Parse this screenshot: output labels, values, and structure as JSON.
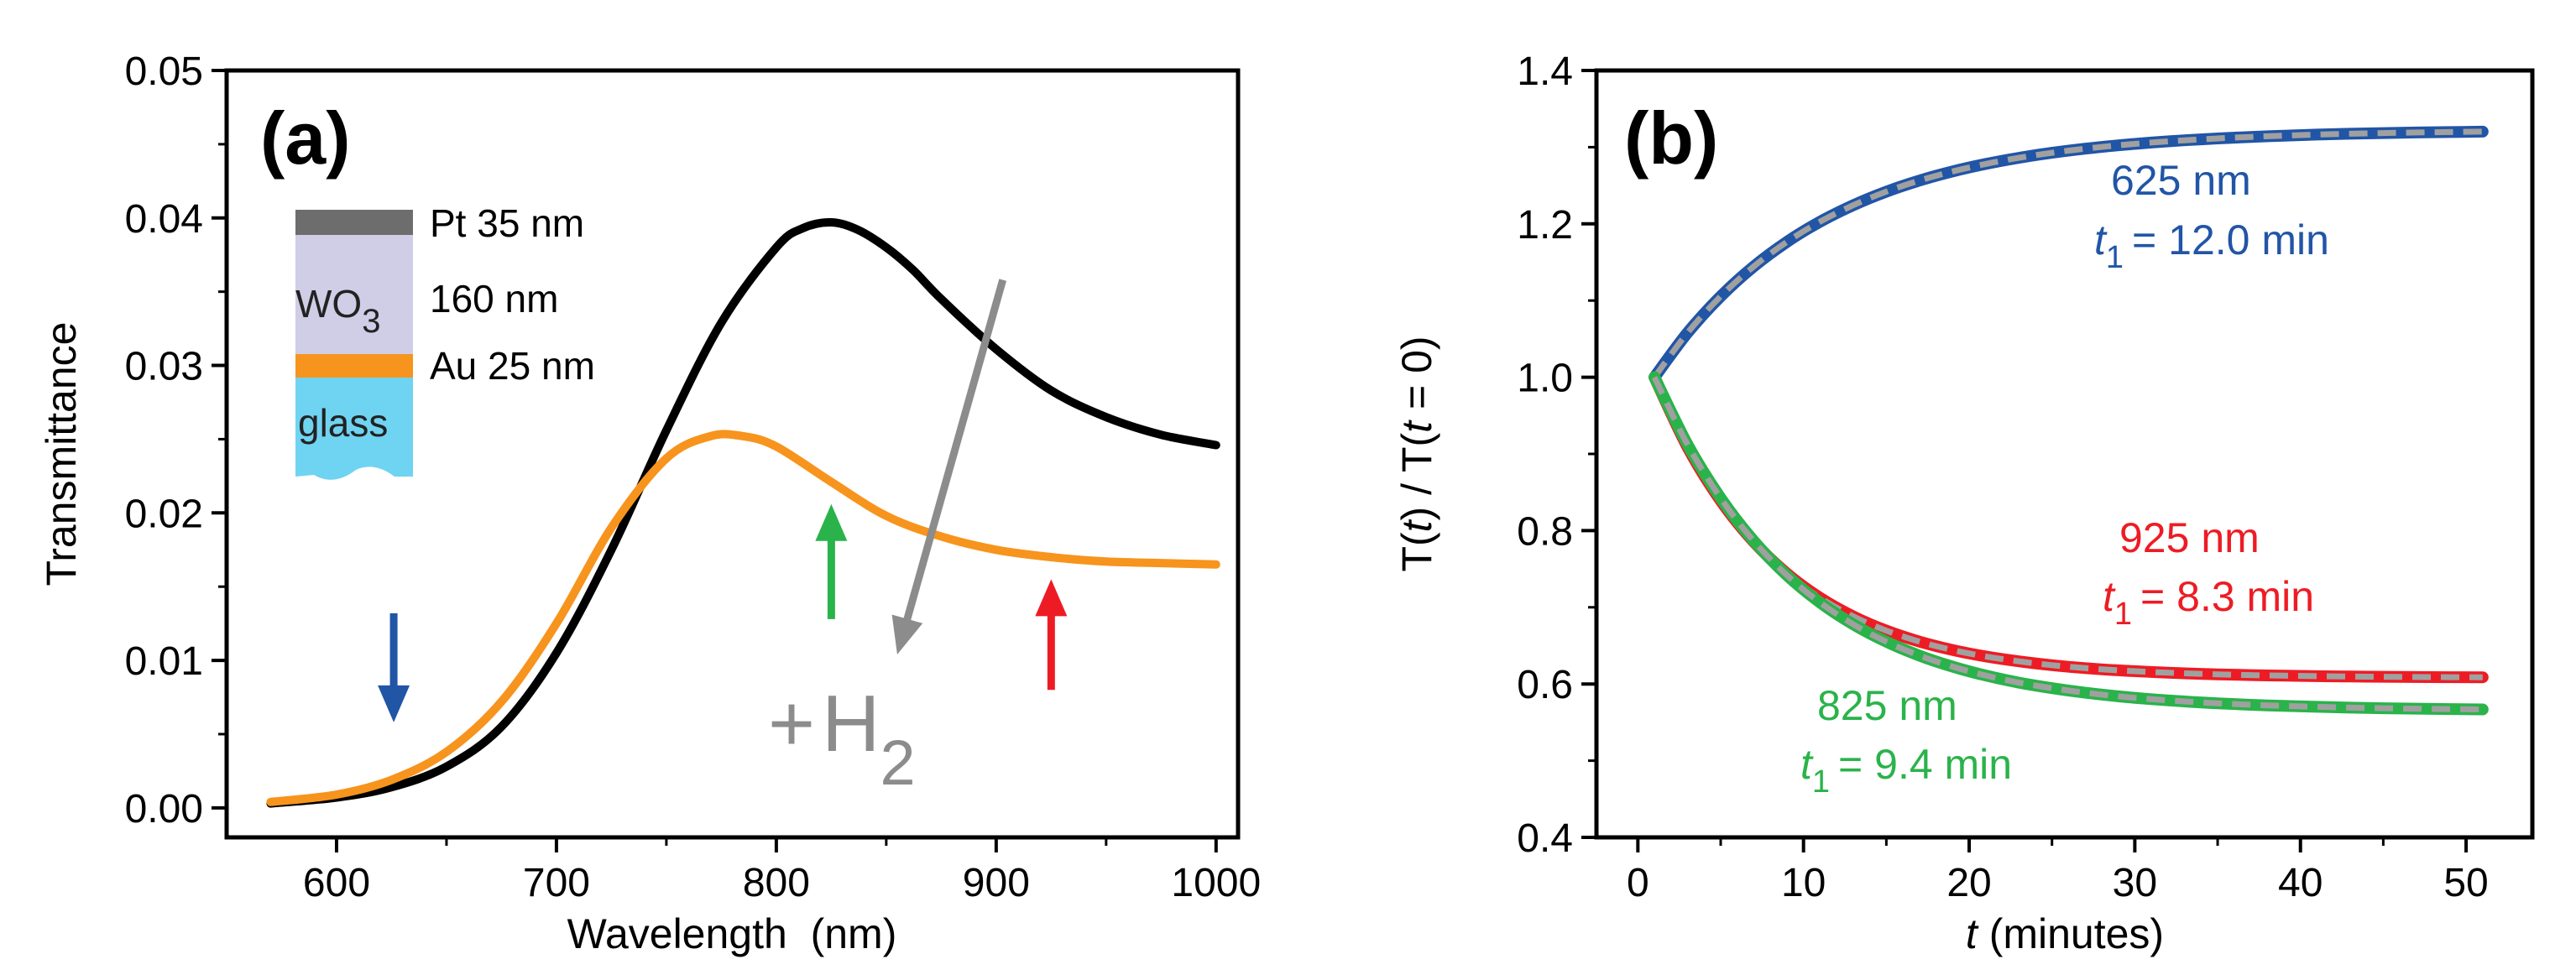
{
  "chart_data": [
    {
      "type": "line",
      "panel_label": "(a)",
      "xlabel": "Wavelength  (nm)",
      "ylabel": "Transmittance",
      "xlim": [
        550,
        1010
      ],
      "ylim": [
        -0.002,
        0.05
      ],
      "xticks": [
        600,
        700,
        800,
        900,
        1000
      ],
      "xtick_labels": [
        "600",
        "700",
        "800",
        "900",
        "1000"
      ],
      "yticks": [
        0.0,
        0.01,
        0.02,
        0.03,
        0.04,
        0.05
      ],
      "ytick_labels": [
        "0.00",
        "0.01",
        "0.02",
        "0.03",
        "0.04",
        "0.05"
      ],
      "series": [
        {
          "color": "#000000",
          "x": [
            570,
            600,
            625,
            650,
            675,
            700,
            725,
            750,
            775,
            800,
            812,
            825,
            837,
            850,
            862,
            875,
            900,
            925,
            950,
            975,
            1000
          ],
          "y": [
            0.0003,
            0.0007,
            0.0014,
            0.0028,
            0.0055,
            0.0105,
            0.0175,
            0.0256,
            0.0329,
            0.038,
            0.0393,
            0.0397,
            0.0392,
            0.038,
            0.0365,
            0.0345,
            0.0311,
            0.0283,
            0.0265,
            0.0253,
            0.0246
          ]
        },
        {
          "color": "#f7941d",
          "x": [
            570,
            600,
            625,
            650,
            675,
            700,
            725,
            750,
            770,
            785,
            800,
            825,
            850,
            875,
            900,
            925,
            950,
            975,
            1000
          ],
          "y": [
            0.0004,
            0.0009,
            0.0019,
            0.0038,
            0.0072,
            0.0125,
            0.019,
            0.0237,
            0.0252,
            0.0252,
            0.0245,
            0.0221,
            0.0198,
            0.0184,
            0.0175,
            0.017,
            0.0167,
            0.0166,
            0.0165
          ]
        }
      ],
      "arrows": [
        {
          "color": "#2155a6",
          "x": 626,
          "y_from": 0.0132,
          "y_to": 0.0058
        },
        {
          "color": "#2ab34a",
          "x": 825,
          "y_from": 0.0128,
          "y_to": 0.0206
        },
        {
          "color": "#ed1c24",
          "x": 925,
          "y_from": 0.008,
          "y_to": 0.0155
        },
        {
          "color": "#8c8c8c",
          "x_from": 903,
          "y_from": 0.0358,
          "x_to": 855,
          "y_to": 0.0104
        }
      ],
      "annotation": {
        "prefix": "+",
        "main": "H",
        "sub": "2"
      },
      "inset_layers": [
        {
          "label": "Pt 35 nm",
          "color": "#6d6d6d"
        },
        {
          "label": "WO",
          "sub": "3",
          "thickness": "160 nm",
          "color": "#d0cde6"
        },
        {
          "label": "Au 25 nm",
          "color": "#f7941d"
        },
        {
          "label": "glass",
          "color": "#6fd3f2"
        }
      ]
    },
    {
      "type": "line",
      "panel_label": "(b)",
      "xlabel_italic": "t",
      "xlabel_rest": " (minutes)",
      "ylabel_parts": [
        "T(",
        "t",
        ") / T(",
        "t",
        " = 0)"
      ],
      "xlim": [
        -2.5,
        54
      ],
      "ylim": [
        0.4,
        1.4
      ],
      "xticks": [
        0,
        10,
        20,
        30,
        40,
        50
      ],
      "xtick_labels": [
        "0",
        "10",
        "20",
        "30",
        "40",
        "50"
      ],
      "yticks": [
        0.4,
        0.6,
        0.8,
        1.0,
        1.2,
        1.4
      ],
      "ytick_labels": [
        "0.4",
        "0.6",
        "0.8",
        "1.0",
        "1.2",
        "1.4"
      ],
      "series": [
        {
          "color": "#2155a6",
          "x": [
            1,
            3,
            5,
            7,
            9,
            11,
            13,
            15,
            17,
            19,
            21,
            23,
            25,
            27,
            29,
            31,
            33,
            35,
            37,
            39,
            41,
            43,
            45,
            47,
            49,
            51
          ],
          "y": [
            1.0,
            1.058,
            1.1055,
            1.1445,
            1.1765,
            1.2028,
            1.2243,
            1.242,
            1.2565,
            1.2684,
            1.2781,
            1.2861,
            1.2927,
            1.298,
            1.3024,
            1.306,
            1.309,
            1.3114,
            1.3134,
            1.315,
            1.3164,
            1.3175,
            1.3184,
            1.3191,
            1.3197,
            1.3202
          ],
          "label": "625 nm",
          "tau_label": "= 12.0 min"
        },
        {
          "color": "#ed1c24",
          "x": [
            1,
            3,
            5,
            7,
            9,
            11,
            13,
            15,
            17,
            19,
            21,
            23,
            25,
            27,
            29,
            31,
            33,
            35,
            37,
            39,
            41,
            43,
            45,
            47,
            49,
            51
          ],
          "y": [
            1.0,
            0.9089,
            0.8389,
            0.7852,
            0.744,
            0.7124,
            0.6882,
            0.6696,
            0.6553,
            0.6443,
            0.6359,
            0.6295,
            0.6245,
            0.6207,
            0.6178,
            0.6156,
            0.6139,
            0.6126,
            0.6116,
            0.6108,
            0.6102,
            0.6097,
            0.6094,
            0.6091,
            0.6089,
            0.6088
          ],
          "label": "925 nm",
          "tau_label": "= 8.3 min"
        },
        {
          "color": "#2ab34a",
          "x": [
            1,
            3,
            5,
            7,
            9,
            11,
            13,
            15,
            17,
            19,
            21,
            23,
            25,
            27,
            29,
            31,
            33,
            35,
            37,
            39,
            41,
            43,
            45,
            47,
            49,
            51
          ],
          "y": [
            1.0,
            0.9123,
            0.8423,
            0.7864,
            0.7418,
            0.7062,
            0.6778,
            0.6551,
            0.637,
            0.6226,
            0.611,
            0.6018,
            0.5945,
            0.5886,
            0.5839,
            0.5802,
            0.5772,
            0.5748,
            0.5729,
            0.5714,
            0.5702,
            0.5692,
            0.5684,
            0.5678,
            0.5673,
            0.5669
          ],
          "label": "825 nm",
          "tau_label": "= 9.4 min"
        }
      ],
      "fit_color": "#a0a0a0",
      "tau_symbol": "t",
      "tau_sub": "1"
    }
  ]
}
